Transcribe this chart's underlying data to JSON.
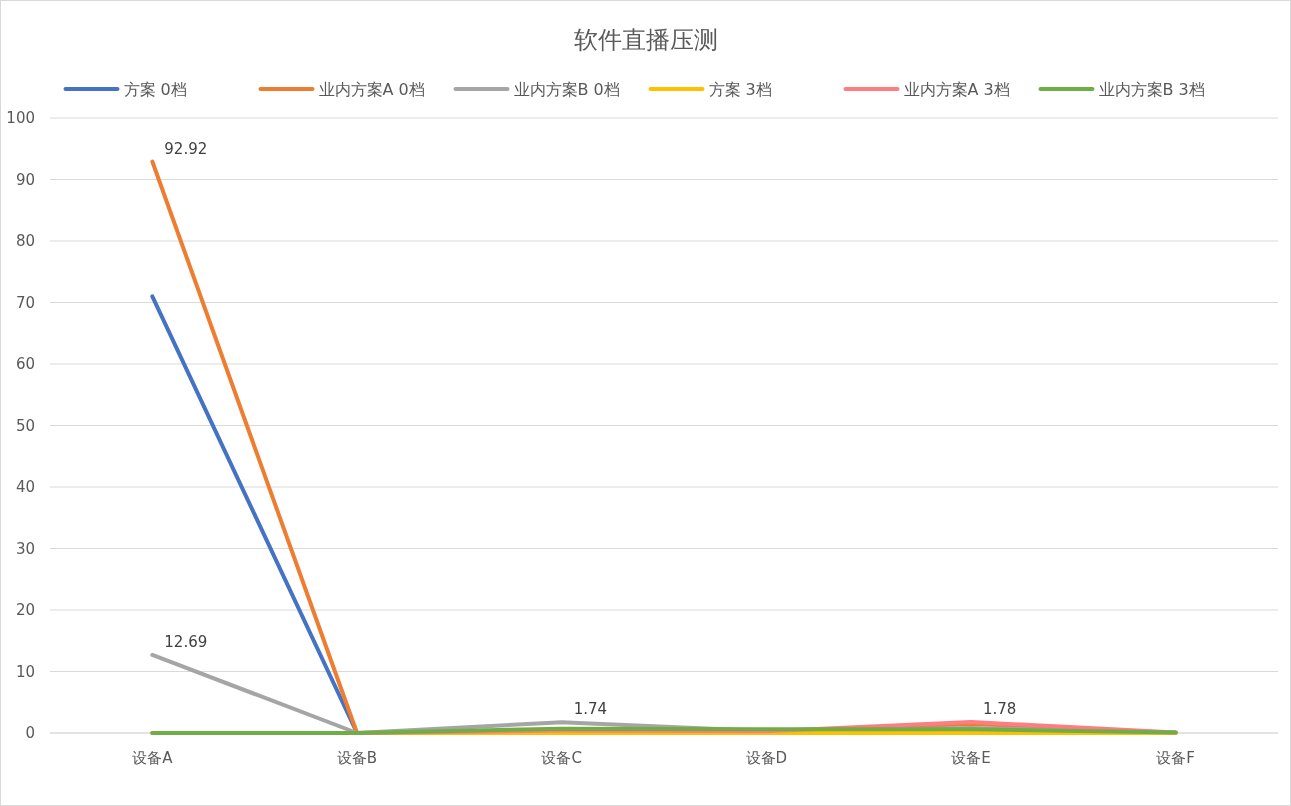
{
  "chart_data": {
    "type": "line",
    "title": "软件直播压测",
    "categories": [
      "设备A",
      "设备B",
      "设备C",
      "设备D",
      "设备E",
      "设备F"
    ],
    "series": [
      {
        "name": "方案 0档",
        "color": "#4472c4",
        "values": [
          71,
          0,
          null,
          null,
          null,
          null
        ]
      },
      {
        "name": "业内方案A 0档",
        "color": "#ed7d31",
        "values": [
          92.92,
          0,
          0,
          0,
          1.5,
          0
        ],
        "value_labels": [
          "92.92",
          null,
          null,
          null,
          null,
          null
        ]
      },
      {
        "name": "业内方案B 0档",
        "color": "#a5a5a5",
        "values": [
          12.69,
          0,
          1.74,
          0.3,
          0.8,
          0.1
        ],
        "value_labels": [
          "12.69",
          null,
          "1.74",
          null,
          null,
          null
        ]
      },
      {
        "name": "方案 3档",
        "color": "#ffc000",
        "values": [
          0,
          0,
          0,
          0,
          0,
          0
        ]
      },
      {
        "name": "业内方案A 3档",
        "color": "#ff7c80",
        "values": [
          0,
          0,
          0.4,
          0.3,
          1.78,
          0.1
        ],
        "value_labels": [
          null,
          null,
          null,
          null,
          "1.78",
          null
        ]
      },
      {
        "name": "业内方案B 3档",
        "color": "#70ad47",
        "values": [
          0,
          0,
          0.7,
          0.6,
          0.6,
          0.1
        ]
      }
    ],
    "ylim": [
      0,
      100
    ],
    "yticks": [
      0,
      10,
      20,
      30,
      40,
      50,
      60,
      70,
      80,
      90,
      100
    ],
    "grid": "y",
    "legend": "top",
    "marker": "none",
    "line_style": "solid"
  }
}
